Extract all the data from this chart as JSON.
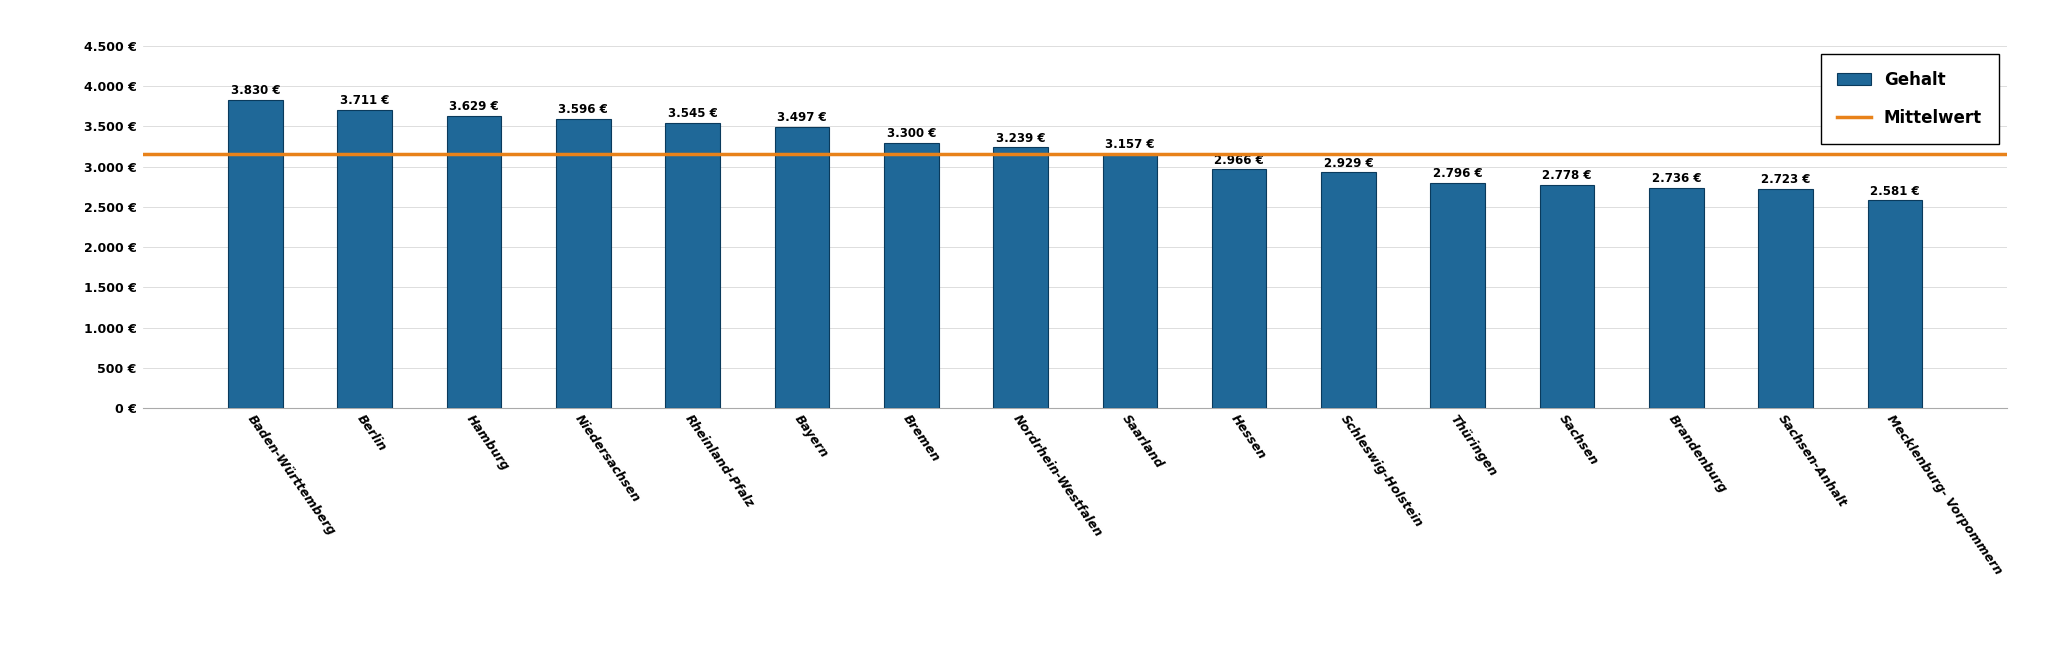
{
  "categories": [
    "Baden-Württemberg",
    "Berlin",
    "Hamburg",
    "Niedersachsen",
    "Rheinland-Pfalz",
    "Bayern",
    "Bremen",
    "Nordrhein-Westfalen",
    "Saarland",
    "Hessen",
    "Schleswig-Holstein",
    "Thüringen",
    "Sachsen",
    "Brandenburg",
    "Sachsen-Anhalt",
    "Mecklenburg- Vorpommern"
  ],
  "values": [
    3830,
    3711,
    3629,
    3596,
    3545,
    3497,
    3300,
    3239,
    3157,
    2966,
    2929,
    2796,
    2778,
    2736,
    2723,
    2581
  ],
  "bar_color": "#1f6898",
  "mittelwert": 3157,
  "mittelwert_color": "#e8821a",
  "ylim": [
    0,
    4500
  ],
  "yticks": [
    0,
    500,
    1000,
    1500,
    2000,
    2500,
    3000,
    3500,
    4000,
    4500
  ],
  "ytick_labels": [
    "0 €",
    "500 €",
    "1.000 €",
    "1.500 €",
    "2.000 €",
    "2.500 €",
    "3.000 €",
    "3.500 €",
    "4.000 €",
    "4.500 €"
  ],
  "legend_gehalt": "Gehalt",
  "legend_mittelwert": "Mittelwert",
  "bar_label_fontsize": 8.5,
  "tick_label_fontsize": 9,
  "background_color": "#ffffff",
  "grid_color": "#d0d0d0"
}
